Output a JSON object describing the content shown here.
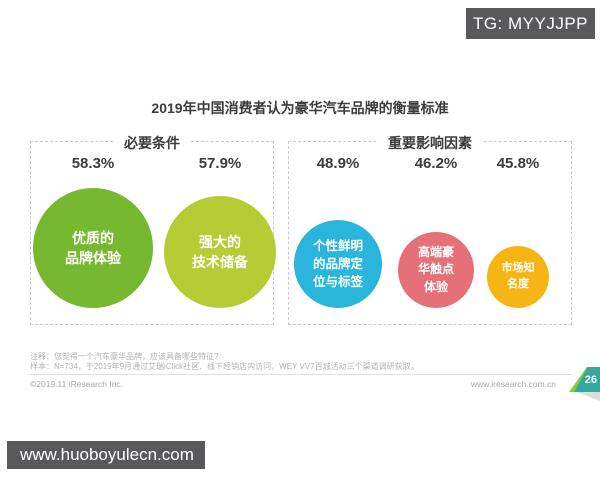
{
  "watermarks": {
    "top_badge": "TG: MYYJJPP",
    "bottom_bar": "www.huoboyulecn.com"
  },
  "chart": {
    "title": "2019年中国消费者认为豪华汽车品牌的衡量标准",
    "sections": [
      {
        "label": "必要条件"
      },
      {
        "label": "重要影响因素"
      }
    ],
    "bubbles": [
      {
        "percent": "58.3%",
        "label_display": "优质的\n品牌体验",
        "color": "#76b82f"
      },
      {
        "percent": "57.9%",
        "label_display": "强大的\n技术储备",
        "color": "#b6cc35"
      },
      {
        "percent": "48.9%",
        "label_display": "个性鲜明\n的品牌定\n位与标签",
        "color": "#2ab5dc"
      },
      {
        "percent": "46.2%",
        "label_display": "高端豪\n华触点\n体验",
        "color": "#e57079"
      },
      {
        "percent": "45.8%",
        "label_display": "市场知\n名度",
        "color": "#f7b515"
      }
    ]
  },
  "chart_data": {
    "type": "bubble",
    "title": "2019年中国消费者认为豪华汽车品牌的衡量标准",
    "unit": "%",
    "legend_position": "none",
    "groups": [
      {
        "name": "必要条件",
        "categories": [
          "优质的品牌体验",
          "强大的技术储备"
        ],
        "values": [
          58.3,
          57.9
        ],
        "colors": [
          "#76b82f",
          "#b6cc35"
        ]
      },
      {
        "name": "重要影响因素",
        "categories": [
          "个性鲜明的品牌定位与标签",
          "高端豪华触点体验",
          "市场知名度"
        ],
        "values": [
          48.9,
          46.2,
          45.8
        ],
        "colors": [
          "#2ab5dc",
          "#e57079",
          "#f7b515"
        ]
      }
    ]
  },
  "footer": {
    "note1": "注释：您觉得一个汽车豪华品牌，应该具备哪些特征?",
    "note2": "样本：N=734，于2019年9月通过艾瑞iClick社区、线下经销店内访问，WEY VV7百城活动三个渠道调研获取。",
    "copyright": "©2019.11 iResearch Inc.",
    "website": "www.iresearch.com.cn",
    "page_number": "26"
  }
}
